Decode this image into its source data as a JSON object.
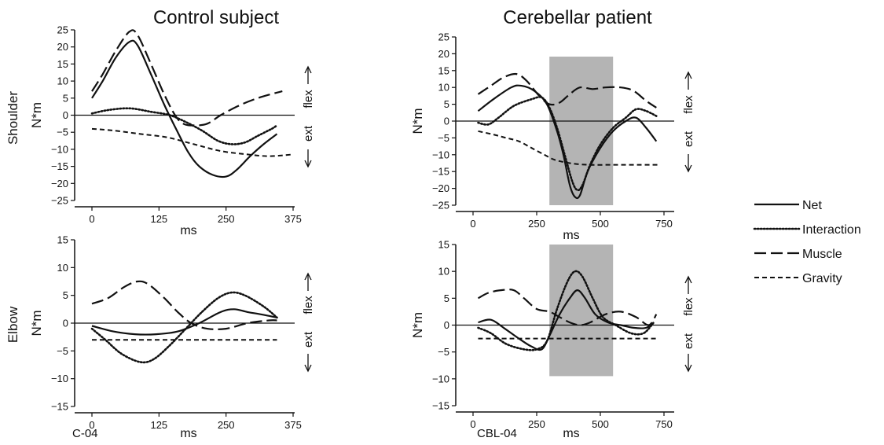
{
  "figure": {
    "row_labels": {
      "shoulder": "Shoulder",
      "elbow": "Elbow"
    },
    "direction_labels": {
      "flex": "flex",
      "ext": "ext"
    },
    "legend": [
      {
        "label": "Net",
        "style": "solid"
      },
      {
        "label": "Interaction",
        "style": "dotted"
      },
      {
        "label": "Muscle",
        "style": "longdash"
      },
      {
        "label": "Gravity",
        "style": "shortdash"
      }
    ]
  },
  "chart_data": [
    {
      "type": "line",
      "title": "Control subject",
      "xlabel": "ms",
      "ylabel": "N*m",
      "subject_code": "",
      "xlim": [
        -25,
        375
      ],
      "ylim": [
        -25,
        25
      ],
      "xticks": [
        0,
        125,
        250,
        375
      ],
      "yticks": [
        -25,
        -20,
        -15,
        -10,
        -5,
        0,
        5,
        10,
        15,
        20,
        25
      ],
      "grid": false,
      "shaded_region": null,
      "series": [
        {
          "name": "Net",
          "style": "solid",
          "points": [
            [
              0,
              5
            ],
            [
              20,
              10
            ],
            [
              45,
              17
            ],
            [
              70,
              21.5
            ],
            [
              85,
              20.5
            ],
            [
              110,
              12
            ],
            [
              135,
              3
            ],
            [
              160,
              -5
            ],
            [
              180,
              -11
            ],
            [
              200,
              -15
            ],
            [
              225,
              -17.5
            ],
            [
              250,
              -18
            ],
            [
              270,
              -16
            ],
            [
              295,
              -12
            ],
            [
              320,
              -8.5
            ],
            [
              345,
              -5.5
            ]
          ]
        },
        {
          "name": "Interaction",
          "style": "dotted",
          "points": [
            [
              0,
              0.5
            ],
            [
              30,
              1.5
            ],
            [
              70,
              2
            ],
            [
              110,
              1
            ],
            [
              145,
              0
            ],
            [
              175,
              -2
            ],
            [
              205,
              -4.5
            ],
            [
              235,
              -7.5
            ],
            [
              260,
              -8.5
            ],
            [
              285,
              -8
            ],
            [
              310,
              -6
            ],
            [
              335,
              -4
            ],
            [
              345,
              -3
            ]
          ]
        },
        {
          "name": "Muscle",
          "style": "longdash",
          "points": [
            [
              0,
              7
            ],
            [
              20,
              12
            ],
            [
              45,
              19
            ],
            [
              70,
              24.5
            ],
            [
              85,
              23.5
            ],
            [
              110,
              15
            ],
            [
              135,
              6
            ],
            [
              155,
              0
            ],
            [
              170,
              -2.5
            ],
            [
              190,
              -3
            ],
            [
              215,
              -2.5
            ],
            [
              240,
              0
            ],
            [
              270,
              2.5
            ],
            [
              300,
              4.5
            ],
            [
              330,
              6
            ],
            [
              355,
              7
            ]
          ]
        },
        {
          "name": "Gravity",
          "style": "shortdash",
          "points": [
            [
              0,
              -4
            ],
            [
              40,
              -4.5
            ],
            [
              90,
              -5.5
            ],
            [
              140,
              -6.5
            ],
            [
              190,
              -8.5
            ],
            [
              240,
              -10.5
            ],
            [
              290,
              -11.5
            ],
            [
              330,
              -12
            ],
            [
              375,
              -11.5
            ]
          ]
        }
      ]
    },
    {
      "type": "line",
      "title": "Cerebellar patient",
      "xlabel": "ms",
      "ylabel": "N*m",
      "subject_code": "",
      "xlim": [
        -25,
        750
      ],
      "ylim": [
        -25,
        25
      ],
      "xticks": [
        0,
        250,
        500,
        750
      ],
      "yticks": [
        -25,
        -20,
        -15,
        -10,
        -5,
        0,
        5,
        10,
        15,
        20,
        25
      ],
      "grid": false,
      "shaded_region": [
        300,
        550
      ],
      "series": [
        {
          "name": "Net",
          "style": "solid",
          "points": [
            [
              20,
              3
            ],
            [
              80,
              6.5
            ],
            [
              150,
              10
            ],
            [
              190,
              10.5
            ],
            [
              240,
              9
            ],
            [
              290,
              5
            ],
            [
              330,
              -3
            ],
            [
              355,
              -10
            ],
            [
              380,
              -19
            ],
            [
              400,
              -22.5
            ],
            [
              420,
              -22
            ],
            [
              450,
              -15
            ],
            [
              500,
              -8
            ],
            [
              550,
              -3
            ],
            [
              600,
              0
            ],
            [
              640,
              1
            ],
            [
              680,
              -2
            ],
            [
              720,
              -6
            ]
          ]
        },
        {
          "name": "Interaction",
          "style": "dotted",
          "points": [
            [
              20,
              -0.5
            ],
            [
              60,
              -1
            ],
            [
              100,
              1
            ],
            [
              160,
              4.5
            ],
            [
              230,
              6.5
            ],
            [
              270,
              7
            ],
            [
              300,
              4
            ],
            [
              330,
              -2
            ],
            [
              360,
              -10
            ],
            [
              390,
              -18
            ],
            [
              410,
              -20.5
            ],
            [
              430,
              -19
            ],
            [
              460,
              -13
            ],
            [
              500,
              -7
            ],
            [
              550,
              -2
            ],
            [
              600,
              1
            ],
            [
              640,
              3.5
            ],
            [
              680,
              3
            ],
            [
              720,
              1.5
            ]
          ]
        },
        {
          "name": "Muscle",
          "style": "longdash",
          "points": [
            [
              20,
              8
            ],
            [
              70,
              10.5
            ],
            [
              120,
              13
            ],
            [
              170,
              14
            ],
            [
              210,
              12
            ],
            [
              260,
              7.5
            ],
            [
              300,
              5
            ],
            [
              340,
              5.5
            ],
            [
              380,
              8
            ],
            [
              420,
              10
            ],
            [
              470,
              9.5
            ],
            [
              520,
              10
            ],
            [
              580,
              10
            ],
            [
              630,
              9
            ],
            [
              680,
              6
            ],
            [
              720,
              4
            ]
          ]
        },
        {
          "name": "Gravity",
          "style": "shortdash",
          "points": [
            [
              20,
              -3
            ],
            [
              80,
              -4
            ],
            [
              130,
              -5
            ],
            [
              180,
              -6
            ],
            [
              230,
              -8
            ],
            [
              280,
              -10
            ],
            [
              320,
              -11.5
            ],
            [
              380,
              -12.5
            ],
            [
              450,
              -13
            ],
            [
              550,
              -13
            ],
            [
              650,
              -13
            ],
            [
              730,
              -13
            ]
          ]
        }
      ]
    },
    {
      "type": "line",
      "title": "",
      "xlabel": "ms",
      "ylabel": "N*m",
      "subject_code": "C-04",
      "xlim": [
        -25,
        375
      ],
      "ylim": [
        -15,
        15
      ],
      "xticks": [
        0,
        125,
        250,
        375
      ],
      "yticks": [
        -15,
        -10,
        -5,
        0,
        5,
        10,
        15
      ],
      "grid": false,
      "shaded_region": null,
      "series": [
        {
          "name": "Net",
          "style": "solid",
          "points": [
            [
              0,
              -0.5
            ],
            [
              40,
              -1.5
            ],
            [
              80,
              -2
            ],
            [
              120,
              -2
            ],
            [
              160,
              -1.5
            ],
            [
              200,
              0
            ],
            [
              240,
              2
            ],
            [
              265,
              2.5
            ],
            [
              290,
              2
            ],
            [
              320,
              1.5
            ],
            [
              345,
              1
            ]
          ]
        },
        {
          "name": "Interaction",
          "style": "dotted",
          "points": [
            [
              0,
              -1
            ],
            [
              25,
              -3
            ],
            [
              55,
              -5.5
            ],
            [
              90,
              -7
            ],
            [
              115,
              -6.5
            ],
            [
              145,
              -4
            ],
            [
              175,
              -1
            ],
            [
              205,
              2
            ],
            [
              235,
              4.5
            ],
            [
              260,
              5.5
            ],
            [
              285,
              5
            ],
            [
              320,
              3
            ],
            [
              345,
              1
            ]
          ]
        },
        {
          "name": "Muscle",
          "style": "longdash",
          "points": [
            [
              0,
              3.5
            ],
            [
              30,
              4.5
            ],
            [
              60,
              6.5
            ],
            [
              85,
              7.5
            ],
            [
              105,
              7
            ],
            [
              135,
              4.5
            ],
            [
              160,
              2
            ],
            [
              185,
              0
            ],
            [
              215,
              -1
            ],
            [
              250,
              -1
            ],
            [
              290,
              0
            ],
            [
              330,
              0.5
            ],
            [
              345,
              0.5
            ]
          ]
        },
        {
          "name": "Gravity",
          "style": "shortdash",
          "points": [
            [
              0,
              -3
            ],
            [
              100,
              -3
            ],
            [
              200,
              -3
            ],
            [
              300,
              -3
            ],
            [
              345,
              -3
            ]
          ]
        }
      ]
    },
    {
      "type": "line",
      "title": "",
      "xlabel": "ms",
      "ylabel": "N*m",
      "subject_code": "CBL-04",
      "xlim": [
        -25,
        750
      ],
      "ylim": [
        -15,
        15
      ],
      "xticks": [
        0,
        250,
        500,
        750
      ],
      "yticks": [
        -15,
        -10,
        -5,
        0,
        5,
        10,
        15
      ],
      "grid": false,
      "shaded_region": [
        300,
        550
      ],
      "shaded_ylim": [
        -9.5,
        15
      ],
      "series": [
        {
          "name": "Net",
          "style": "solid",
          "points": [
            [
              20,
              0.5
            ],
            [
              70,
              1
            ],
            [
              120,
              -0.5
            ],
            [
              180,
              -2.5
            ],
            [
              230,
              -4
            ],
            [
              270,
              -4.5
            ],
            [
              300,
              -2
            ],
            [
              340,
              2
            ],
            [
              380,
              5
            ],
            [
              410,
              6.5
            ],
            [
              440,
              5
            ],
            [
              480,
              2
            ],
            [
              530,
              0.5
            ],
            [
              580,
              0
            ],
            [
              630,
              -0.5
            ],
            [
              680,
              -0.5
            ],
            [
              710,
              0.5
            ]
          ]
        },
        {
          "name": "Interaction",
          "style": "dotted",
          "points": [
            [
              20,
              -0.5
            ],
            [
              70,
              -1.5
            ],
            [
              130,
              -3.5
            ],
            [
              200,
              -4.5
            ],
            [
              250,
              -4.5
            ],
            [
              290,
              -3
            ],
            [
              330,
              3
            ],
            [
              370,
              8
            ],
            [
              400,
              10
            ],
            [
              430,
              9
            ],
            [
              470,
              5
            ],
            [
              510,
              1.5
            ],
            [
              560,
              0
            ],
            [
              620,
              -1.5
            ],
            [
              670,
              -1.5
            ],
            [
              710,
              0.5
            ]
          ]
        },
        {
          "name": "Muscle",
          "style": "longdash",
          "points": [
            [
              20,
              5
            ],
            [
              60,
              6
            ],
            [
              110,
              6.5
            ],
            [
              160,
              6.5
            ],
            [
              200,
              5
            ],
            [
              250,
              3
            ],
            [
              300,
              2.5
            ],
            [
              340,
              1.5
            ],
            [
              380,
              0.5
            ],
            [
              420,
              0
            ],
            [
              460,
              0.5
            ],
            [
              520,
              2
            ],
            [
              580,
              2.5
            ],
            [
              640,
              1.5
            ],
            [
              690,
              0
            ],
            [
              720,
              2
            ]
          ]
        },
        {
          "name": "Gravity",
          "style": "shortdash",
          "points": [
            [
              20,
              -2.5
            ],
            [
              150,
              -2.5
            ],
            [
              300,
              -2.5
            ],
            [
              450,
              -2.5
            ],
            [
              600,
              -2.5
            ],
            [
              730,
              -2.5
            ]
          ]
        }
      ]
    }
  ]
}
